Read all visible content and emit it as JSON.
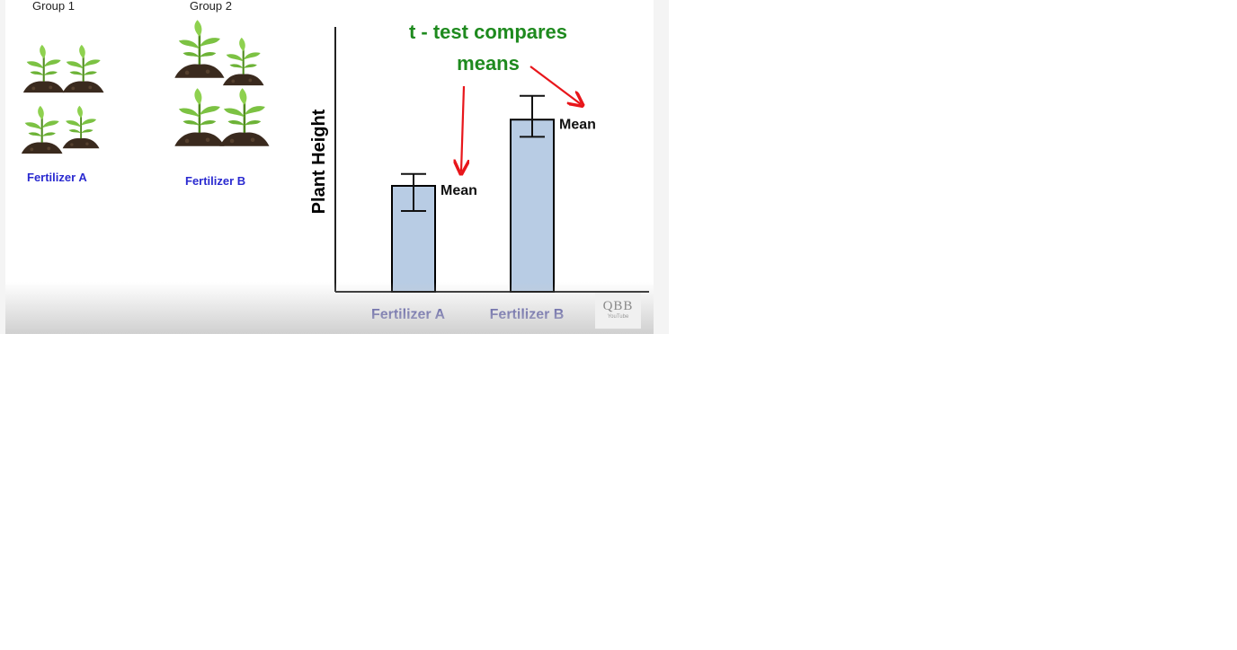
{
  "groups": [
    {
      "label": "Group 1",
      "fertilizer": "Fertilizer A"
    },
    {
      "label": "Group 2",
      "fertilizer": "Fertilizer B"
    }
  ],
  "chart_data": {
    "type": "bar",
    "categories": [
      "Fertilizer A",
      "Fertilizer B"
    ],
    "values": [
      40,
      65
    ],
    "error": [
      {
        "low": 30.5,
        "high": 44.5
      },
      {
        "low": 58.5,
        "high": 74
      }
    ],
    "bar_labels": [
      "Mean",
      "Mean"
    ],
    "ylabel": "Plant Height",
    "ylim": [
      0,
      100
    ],
    "title": "t - test compares means",
    "colors": {
      "bar_fill": "#b8cce4",
      "bar_stroke": "#000000",
      "category_text": "#1f1f8f",
      "title_text": "#1e8a1e",
      "arrow": "#e8161b"
    }
  },
  "watermark": {
    "main": "QBB",
    "sub": "YouTube"
  }
}
